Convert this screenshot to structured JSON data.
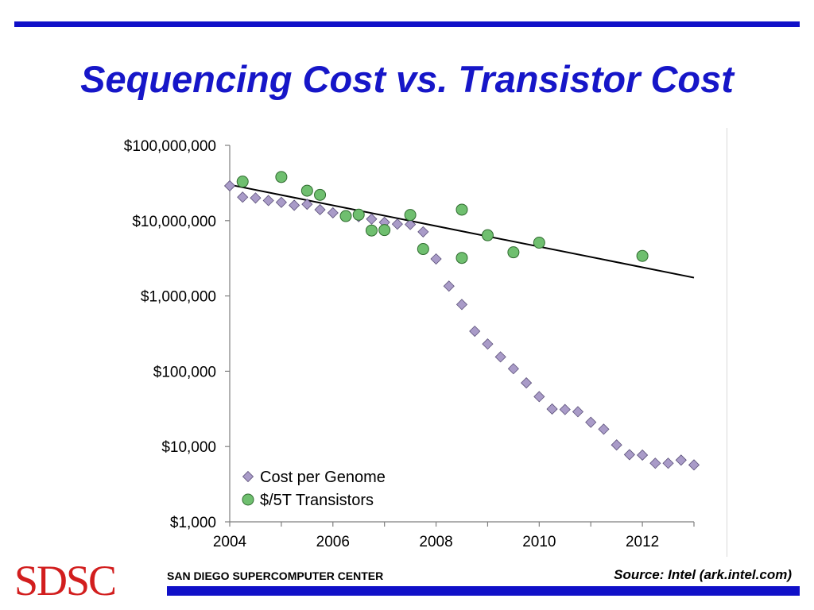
{
  "slide": {
    "title": "Sequencing Cost vs. Transistor Cost",
    "logo": "SDSC",
    "organization": "SAN DIEGO SUPERCOMPUTER CENTER",
    "source": "Source: Intel (ark.intel.com)"
  },
  "colors": {
    "bars": "#1010c8",
    "title": "#1616c8",
    "logo": "#d21e1e",
    "genome_marker": "#a99bc8",
    "transistor_marker": "#6fbf6f",
    "trendline": "#000000"
  },
  "chart_data": {
    "type": "scatter",
    "title": "",
    "xlabel": "",
    "ylabel": "",
    "y_scale": "log",
    "xlim": [
      2004,
      2013
    ],
    "ylim": [
      1000,
      100000000
    ],
    "x_ticks": [
      2004,
      2006,
      2008,
      2010,
      2012
    ],
    "y_ticks": [
      {
        "value": 100000000,
        "label": "$100,000,000"
      },
      {
        "value": 10000000,
        "label": "$10,000,000"
      },
      {
        "value": 1000000,
        "label": "$1,000,000"
      },
      {
        "value": 100000,
        "label": "$100,000"
      },
      {
        "value": 10000,
        "label": "$10,000"
      },
      {
        "value": 1000,
        "label": "$1,000"
      }
    ],
    "grid": false,
    "legend": "bottom-left",
    "series": [
      {
        "name": "Cost per Genome",
        "marker": "diamond",
        "points": [
          {
            "x": 2004.0,
            "y": 29000000
          },
          {
            "x": 2004.25,
            "y": 20500000
          },
          {
            "x": 2004.5,
            "y": 20000000
          },
          {
            "x": 2004.75,
            "y": 18500000
          },
          {
            "x": 2005.0,
            "y": 17500000
          },
          {
            "x": 2005.25,
            "y": 16000000
          },
          {
            "x": 2005.5,
            "y": 16500000
          },
          {
            "x": 2005.75,
            "y": 14000000
          },
          {
            "x": 2006.0,
            "y": 12700000
          },
          {
            "x": 2006.25,
            "y": 11500000
          },
          {
            "x": 2006.5,
            "y": 11300000
          },
          {
            "x": 2006.75,
            "y": 10500000
          },
          {
            "x": 2007.0,
            "y": 9500000
          },
          {
            "x": 2007.25,
            "y": 9000000
          },
          {
            "x": 2007.5,
            "y": 8900000
          },
          {
            "x": 2007.75,
            "y": 7100000
          },
          {
            "x": 2008.0,
            "y": 3100000
          },
          {
            "x": 2008.25,
            "y": 1350000
          },
          {
            "x": 2008.5,
            "y": 770000
          },
          {
            "x": 2008.75,
            "y": 340000
          },
          {
            "x": 2009.0,
            "y": 230000
          },
          {
            "x": 2009.25,
            "y": 155000
          },
          {
            "x": 2009.5,
            "y": 108000
          },
          {
            "x": 2009.75,
            "y": 70000
          },
          {
            "x": 2010.0,
            "y": 46000
          },
          {
            "x": 2010.25,
            "y": 31500
          },
          {
            "x": 2010.5,
            "y": 31000
          },
          {
            "x": 2010.75,
            "y": 29000
          },
          {
            "x": 2011.0,
            "y": 21000
          },
          {
            "x": 2011.25,
            "y": 17000
          },
          {
            "x": 2011.5,
            "y": 10500
          },
          {
            "x": 2011.75,
            "y": 7800
          },
          {
            "x": 2012.0,
            "y": 7700
          },
          {
            "x": 2012.25,
            "y": 6000
          },
          {
            "x": 2012.5,
            "y": 6000
          },
          {
            "x": 2012.75,
            "y": 6600
          },
          {
            "x": 2013.0,
            "y": 5700
          }
        ]
      },
      {
        "name": "$/5T Transistors",
        "marker": "circle",
        "points": [
          {
            "x": 2004.25,
            "y": 33000000
          },
          {
            "x": 2005.0,
            "y": 38000000
          },
          {
            "x": 2005.5,
            "y": 25000000
          },
          {
            "x": 2005.75,
            "y": 22000000
          },
          {
            "x": 2006.25,
            "y": 11500000
          },
          {
            "x": 2006.5,
            "y": 12000000
          },
          {
            "x": 2006.75,
            "y": 7400000
          },
          {
            "x": 2007.0,
            "y": 7500000
          },
          {
            "x": 2007.5,
            "y": 11900000
          },
          {
            "x": 2007.75,
            "y": 4200000
          },
          {
            "x": 2008.5,
            "y": 14000000
          },
          {
            "x": 2008.5,
            "y": 3200000
          },
          {
            "x": 2009.0,
            "y": 6400000
          },
          {
            "x": 2009.5,
            "y": 3800000
          },
          {
            "x": 2010.0,
            "y": 5100000
          },
          {
            "x": 2012.0,
            "y": 3400000
          }
        ]
      }
    ],
    "trendline": {
      "x": [
        2004.0,
        2013.0
      ],
      "y": [
        30000000,
        1750000
      ]
    }
  }
}
